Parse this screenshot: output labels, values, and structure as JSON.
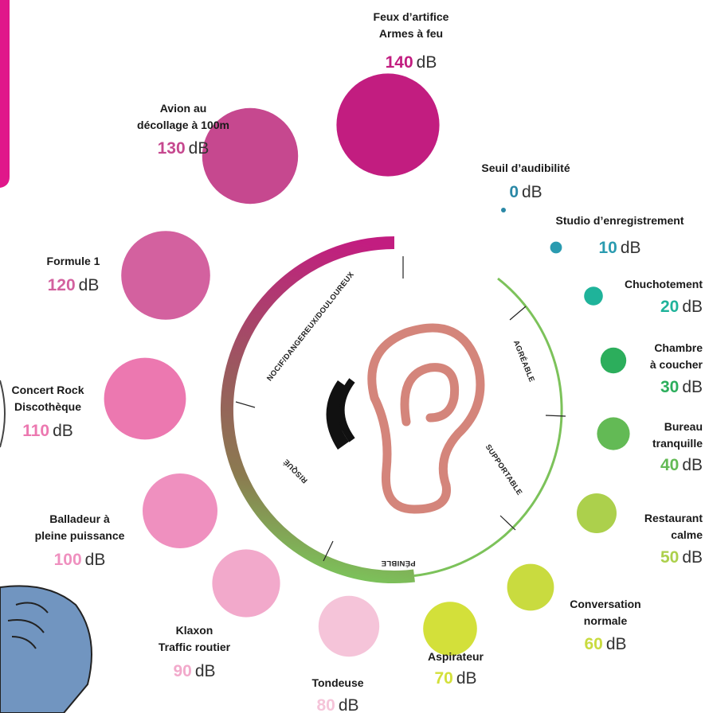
{
  "unit": "dB",
  "zones": [
    "NOCIF/DANGEREUX/DOULOUREUX",
    "AGRÉABLE",
    "SUPPORTABLE",
    "PÉNIBLE",
    "RISQUÉ"
  ],
  "items": [
    {
      "label": [
        "Seuil d’audibilité"
      ],
      "value": 0,
      "color": "#2a88a6"
    },
    {
      "label": [
        "Studio d’enregistrement"
      ],
      "value": 10,
      "color": "#2a9bb0"
    },
    {
      "label": [
        "Chuchotement"
      ],
      "value": 20,
      "color": "#1fb39a"
    },
    {
      "label": [
        "Chambre",
        "à coucher"
      ],
      "value": 30,
      "color": "#2cae5c"
    },
    {
      "label": [
        "Bureau",
        "tranquille"
      ],
      "value": 40,
      "color": "#63ba55"
    },
    {
      "label": [
        "Restaurant",
        "calme"
      ],
      "value": 50,
      "color": "#acd04c"
    },
    {
      "label": [
        "Conversation",
        "normale"
      ],
      "value": 60,
      "color": "#c9db3f"
    },
    {
      "label": [
        "Aspirateur"
      ],
      "value": 70,
      "color": "#d3e03a"
    },
    {
      "label": [
        "Tondeuse"
      ],
      "value": 80,
      "color": "#f5c4d9"
    },
    {
      "label": [
        "Klaxon",
        "Traffic routier"
      ],
      "value": 90,
      "color": "#f2a9cb"
    },
    {
      "label": [
        "Balladeur à",
        "pleine puissance"
      ],
      "value": 100,
      "color": "#ef90bf"
    },
    {
      "label": [
        "Concert Rock",
        "Discothèque"
      ],
      "value": 110,
      "color": "#ec78b0"
    },
    {
      "label": [
        "Formule 1"
      ],
      "value": 120,
      "color": "#d3619f"
    },
    {
      "label": [
        "Avion au",
        "décollage à 100m"
      ],
      "value": 130,
      "color": "#c6488f"
    },
    {
      "label": [
        "Feux d’artifice",
        "Armes à feu"
      ],
      "value": 140,
      "color": "#c21d80"
    }
  ]
}
